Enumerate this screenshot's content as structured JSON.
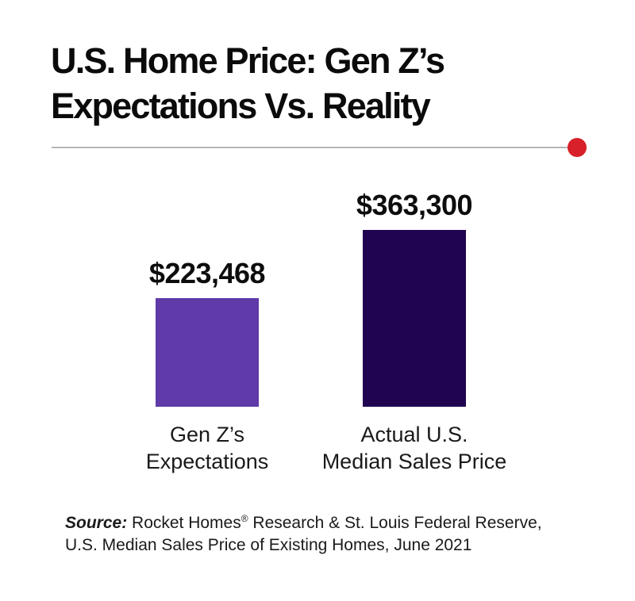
{
  "header": {
    "title_line1": "U.S. Home Price: Gen Z’s",
    "title_line2": "Expectations Vs. Reality"
  },
  "divider": {
    "line_color": "#b5b5b5",
    "accent_dot_color": "#d7202a"
  },
  "chart_data": {
    "type": "bar",
    "title": "U.S. Home Price: Gen Z’s Expectations Vs. Reality",
    "categories": [
      "Gen Z’s Expectations",
      "Actual U.S. Median Sales Price"
    ],
    "category_lines": [
      [
        "Gen Z’s",
        "Expectations"
      ],
      [
        "Actual U.S.",
        "Median Sales Price"
      ]
    ],
    "values": [
      223468,
      363300
    ],
    "value_labels": [
      "$223,468",
      "$363,300"
    ],
    "bar_colors": [
      "#5f3aa8",
      "#200351"
    ],
    "xlabel": "",
    "ylabel": "",
    "ylim": [
      0,
      363300
    ],
    "grid": false,
    "legend": false
  },
  "footer": {
    "source_prefix": "Source:",
    "source_line1_a": " Rocket Homes",
    "registered_mark": "®",
    "source_line1_b": " Research & St. Louis Federal Reserve,",
    "source_line2": "U.S. Median Sales Price of Existing Homes, June 2021"
  }
}
